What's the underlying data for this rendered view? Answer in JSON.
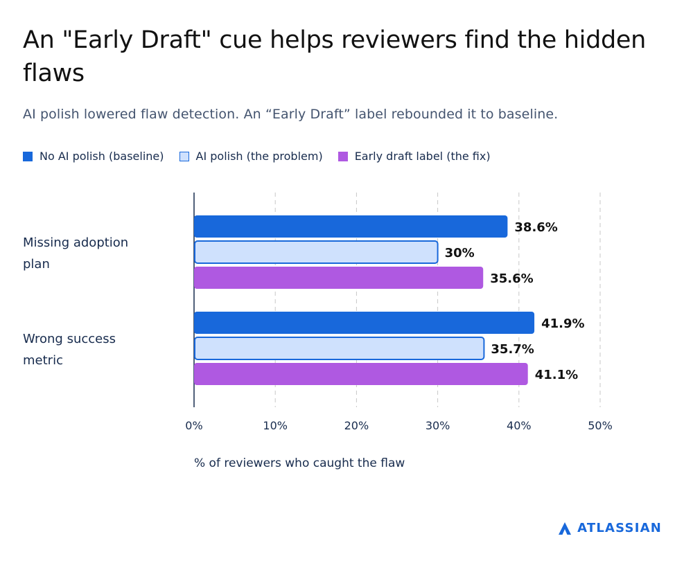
{
  "header": {
    "title": "An \"Early Draft\" cue helps reviewers find the hidden flaws",
    "subtitle": "AI polish lowered flaw detection. An “Early Draft” label rebounded it to baseline."
  },
  "brand": {
    "name": "ATLASSIAN",
    "color": "#1868db"
  },
  "colors": {
    "baseline": "#1868db",
    "polish_fill": "#cfe1fd",
    "polish_stroke": "#1868db",
    "fix": "#af59e1",
    "grid": "#c7c7c7",
    "axis": "#172b4d",
    "text": "#172b4d"
  },
  "chart_data": {
    "type": "bar",
    "orientation": "horizontal",
    "categories": [
      "Missing adoption plan",
      "Wrong success metric"
    ],
    "series": [
      {
        "name": "No AI polish (baseline)",
        "values": [
          38.6,
          41.9
        ],
        "labels": [
          "38.6%",
          "41.9%"
        ]
      },
      {
        "name": "AI polish (the problem)",
        "values": [
          30,
          35.7
        ],
        "labels": [
          "30%",
          "35.7%"
        ]
      },
      {
        "name": "Early draft label (the fix)",
        "values": [
          35.6,
          41.1
        ],
        "labels": [
          "35.6%",
          "41.1%"
        ]
      }
    ],
    "xlim": [
      0,
      50
    ],
    "xticks": [
      0,
      10,
      20,
      30,
      40,
      50
    ],
    "xtick_labels": [
      "0%",
      "10%",
      "20%",
      "30%",
      "40%",
      "50%"
    ],
    "xlabel": "% of reviewers who caught the flaw",
    "grid": "vertical-dashed",
    "legend": "top-left"
  }
}
